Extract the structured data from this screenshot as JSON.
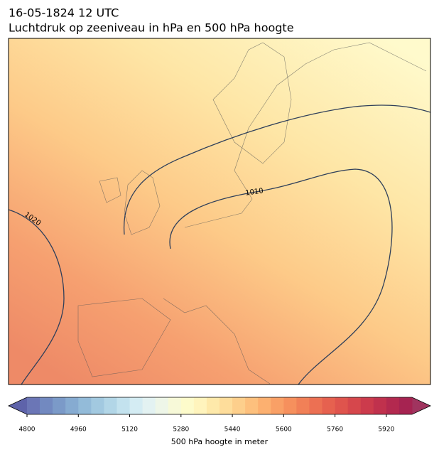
{
  "map": {
    "title": "16-05-1824 12 UTC",
    "subtitle": "Luchtdruk op zeeniveau in hPa en 500 hPa hoogte",
    "contour_labels": [
      "1010",
      "1020"
    ],
    "colorbar": {
      "label": "500 hPa hoogte in meter",
      "levels": [
        4800,
        4840,
        4880,
        4920,
        4960,
        5000,
        5040,
        5080,
        5120,
        5160,
        5200,
        5240,
        5280,
        5320,
        5360,
        5400,
        5440,
        5480,
        5520,
        5560,
        5600,
        5640,
        5680,
        5720,
        5760,
        5800,
        5840,
        5880,
        5920,
        5960,
        6000
      ],
      "colors": [
        "#6b76b6",
        "#7289c0",
        "#7b9ac8",
        "#86abd1",
        "#93bbd9",
        "#a2c9e0",
        "#b2d6e7",
        "#c3e2ee",
        "#d4ecf3",
        "#e3f2f2",
        "#eef6e8",
        "#f7f9d8",
        "#fdfbcb",
        "#fff4bd",
        "#fee9aa",
        "#fedd9b",
        "#fdcf8c",
        "#fdc07d",
        "#fcb070",
        "#f9a066",
        "#f6905d",
        "#f18057",
        "#ec7053",
        "#e6614f",
        "#df544d",
        "#d6474c",
        "#cc3b4c",
        "#c0314d",
        "#b3294f",
        "#a62351"
      ],
      "under_color": "#5e63aa",
      "over_color": "#a0345f",
      "ticks": [
        4800,
        4960,
        5120,
        5280,
        5440,
        5600,
        5760,
        5920
      ]
    }
  }
}
